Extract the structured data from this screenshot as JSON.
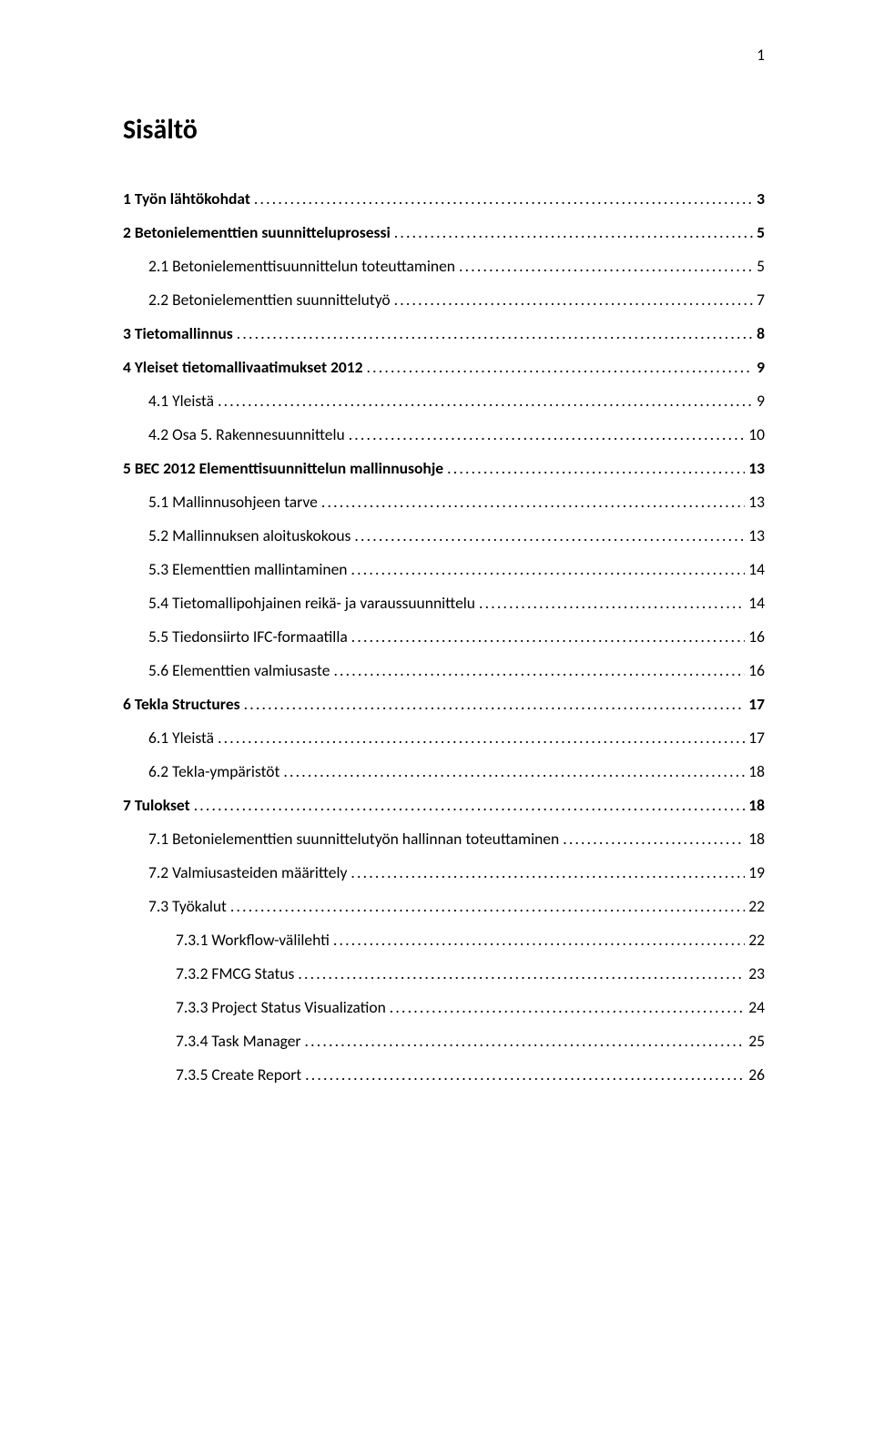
{
  "page_number": "1",
  "heading": "Sisältö",
  "text_color": "#000000",
  "background_color": "#ffffff",
  "font_family": "Calibri",
  "heading_fontsize_pt": 22,
  "body_fontsize_pt": 13,
  "toc": [
    {
      "level": 0,
      "bold": true,
      "label": "1 Työn lähtökohdat",
      "page": "3"
    },
    {
      "level": 0,
      "bold": true,
      "label": "2 Betonielementtien suunnitteluprosessi",
      "page": "5"
    },
    {
      "level": 1,
      "bold": false,
      "label": "2.1 Betonielementtisuunnittelun toteuttaminen",
      "page": "5"
    },
    {
      "level": 1,
      "bold": false,
      "label": "2.2 Betonielementtien suunnittelutyö",
      "page": "7"
    },
    {
      "level": 0,
      "bold": true,
      "label": "3 Tietomallinnus",
      "page": "8"
    },
    {
      "level": 0,
      "bold": true,
      "label": "4 Yleiset tietomallivaatimukset 2012",
      "page": "9"
    },
    {
      "level": 1,
      "bold": false,
      "label": "4.1 Yleistä",
      "page": "9"
    },
    {
      "level": 1,
      "bold": false,
      "label": "4.2 Osa 5. Rakennesuunnittelu",
      "page": "10"
    },
    {
      "level": 0,
      "bold": true,
      "label": "5 BEC 2012 Elementtisuunnittelun mallinnusohje",
      "page": "13"
    },
    {
      "level": 1,
      "bold": false,
      "label": "5.1 Mallinnusohjeen tarve",
      "page": "13"
    },
    {
      "level": 1,
      "bold": false,
      "label": "5.2 Mallinnuksen aloituskokous",
      "page": "13"
    },
    {
      "level": 1,
      "bold": false,
      "label": "5.3 Elementtien mallintaminen",
      "page": "14"
    },
    {
      "level": 1,
      "bold": false,
      "label": "5.4 Tietomallipohjainen reikä- ja varaussuunnittelu",
      "page": "14"
    },
    {
      "level": 1,
      "bold": false,
      "label": "5.5 Tiedonsiirto IFC-formaatilla",
      "page": "16"
    },
    {
      "level": 1,
      "bold": false,
      "label": "5.6 Elementtien valmiusaste",
      "page": "16"
    },
    {
      "level": 0,
      "bold": true,
      "label": "6 Tekla Structures",
      "page": "17"
    },
    {
      "level": 1,
      "bold": false,
      "label": "6.1 Yleistä",
      "page": "17"
    },
    {
      "level": 1,
      "bold": false,
      "label": "6.2 Tekla-ympäristöt",
      "page": "18"
    },
    {
      "level": 0,
      "bold": true,
      "label": "7 Tulokset",
      "page": "18"
    },
    {
      "level": 1,
      "bold": false,
      "label": "7.1 Betonielementtien suunnittelutyön hallinnan toteuttaminen",
      "page": "18"
    },
    {
      "level": 1,
      "bold": false,
      "label": "7.2 Valmiusasteiden määrittely",
      "page": "19"
    },
    {
      "level": 1,
      "bold": false,
      "label": "7.3 Työkalut",
      "page": "22"
    },
    {
      "level": 2,
      "bold": false,
      "label": "7.3.1 Workflow-välilehti",
      "page": "22"
    },
    {
      "level": 2,
      "bold": false,
      "label": "7.3.2 FMCG Status",
      "page": "23"
    },
    {
      "level": 2,
      "bold": false,
      "label": "7.3.3 Project Status Visualization",
      "page": "24"
    },
    {
      "level": 2,
      "bold": false,
      "label": "7.3.4 Task Manager",
      "page": "25"
    },
    {
      "level": 2,
      "bold": false,
      "label": "7.3.5 Create Report",
      "page": "26"
    }
  ]
}
